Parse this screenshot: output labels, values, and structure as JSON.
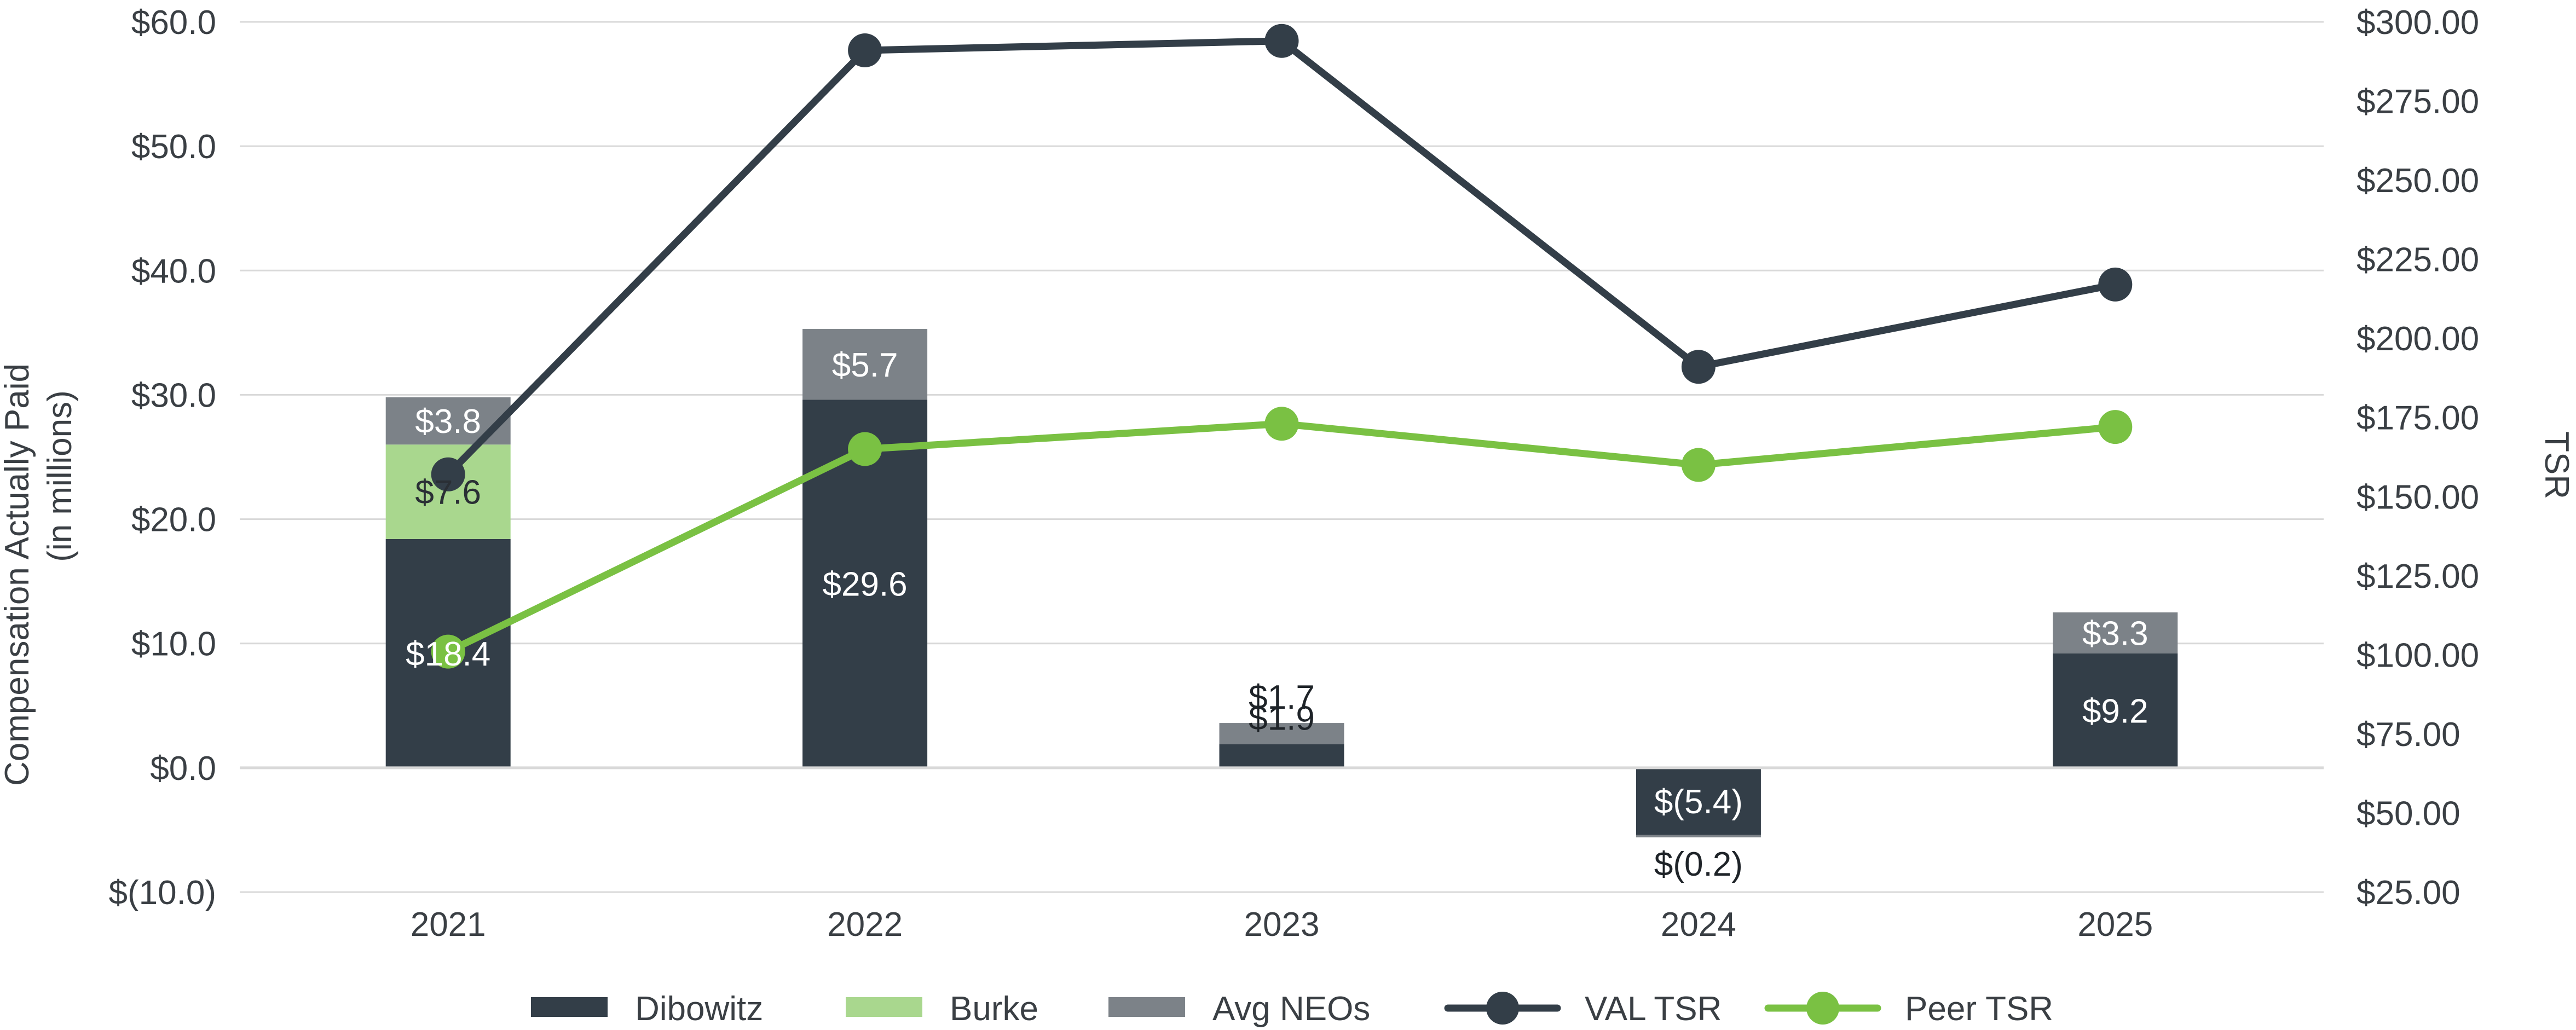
{
  "chart_data": {
    "type": "bar",
    "categories": [
      "2021",
      "2022",
      "2023",
      "2024",
      "2025"
    ],
    "y_left": {
      "title_line1": "Compensation Actually Paid",
      "title_line2": "(in millions)",
      "range": [
        -10,
        60
      ],
      "ticks": [
        -10,
        0,
        10,
        20,
        30,
        40,
        50,
        60
      ],
      "tick_labels": [
        "$(10.0)",
        "$0.0",
        "$10.0",
        "$20.0",
        "$30.0",
        "$40.0",
        "$50.0",
        "$60.0"
      ]
    },
    "y_right": {
      "title": "TSR",
      "range": [
        25,
        300
      ],
      "ticks": [
        25,
        50,
        75,
        100,
        125,
        150,
        175,
        200,
        225,
        250,
        275,
        300
      ],
      "tick_labels": [
        "$25.00",
        "$50.00",
        "$75.00",
        "$100.00",
        "$125.00",
        "$150.00",
        "$175.00",
        "$200.00",
        "$225.00",
        "$250.00",
        "$275.00",
        "$300.00"
      ]
    },
    "bar_series": [
      {
        "name": "Dibowitz",
        "color": "#333e48",
        "values": [
          18.4,
          29.6,
          1.9,
          -5.4,
          9.2
        ],
        "labels": [
          "$18.4",
          "$29.6",
          "$1.9",
          "$(5.4)",
          "$9.2"
        ]
      },
      {
        "name": "Burke",
        "color": "#a9d78e",
        "values": [
          7.6,
          0,
          0,
          0,
          0
        ],
        "labels": [
          "$7.6",
          "",
          "",
          "",
          ""
        ]
      },
      {
        "name": "Avg NEOs",
        "color": "#7c8288",
        "values": [
          3.8,
          5.7,
          1.7,
          -0.2,
          3.3
        ],
        "labels": [
          "$3.8",
          "$5.7",
          "$1.7",
          "$(0.2)",
          "$3.3"
        ]
      }
    ],
    "line_series": [
      {
        "name": "VAL TSR",
        "color": "#333e48",
        "values": [
          157,
          291,
          294,
          191,
          217
        ]
      },
      {
        "name": "Peer TSR",
        "color": "#7ac143",
        "values": [
          101,
          165,
          173,
          160,
          172
        ]
      }
    ],
    "legend_position": "bottom",
    "grid": true
  }
}
